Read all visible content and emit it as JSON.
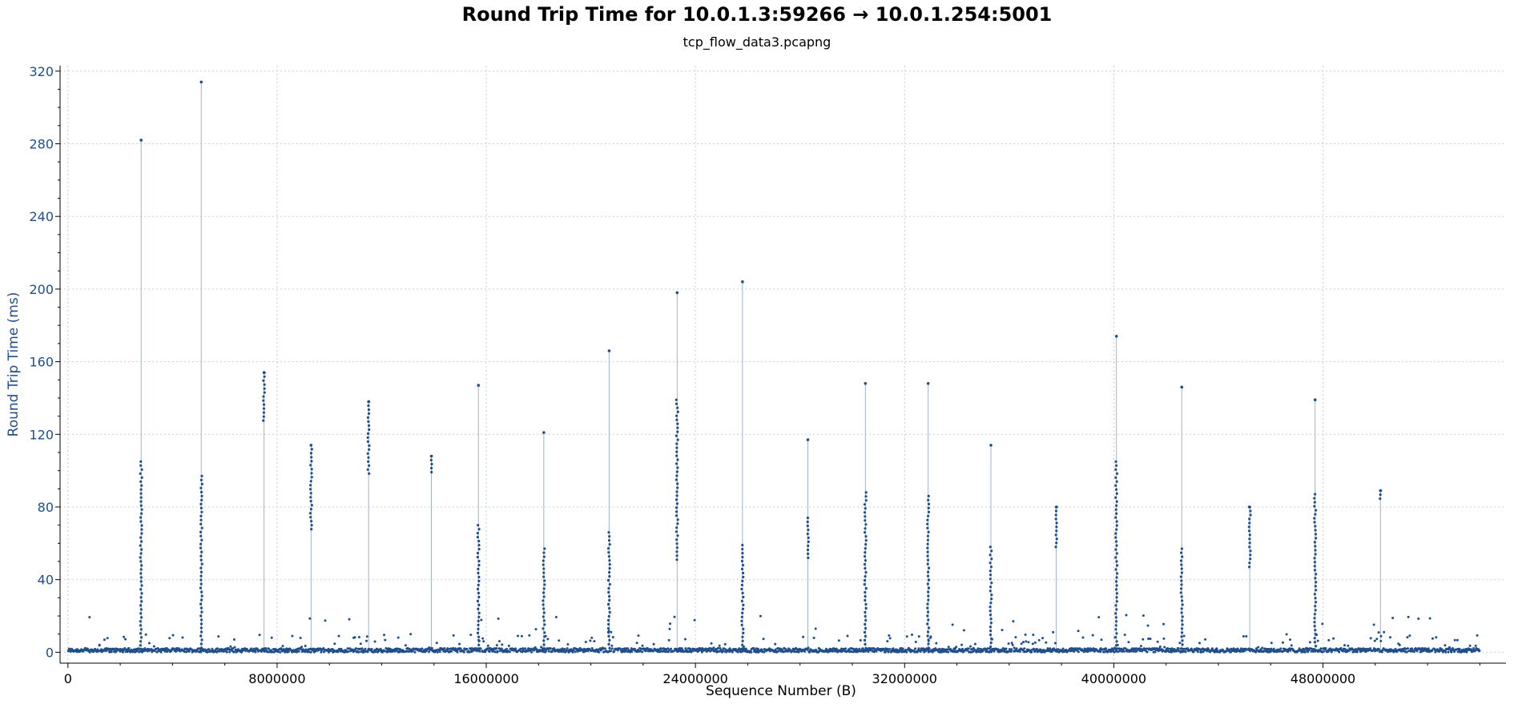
{
  "chart_data": {
    "type": "scatter",
    "title": "Round Trip Time for 10.0.1.3:59266 → 10.0.1.254:5001",
    "subtitle": "tcp_flow_data3.pcapng",
    "xlabel": "Sequence Number (B)",
    "ylabel": "Round Trip Time (ms)",
    "xlim": [
      -300000,
      55000000
    ],
    "ylim": [
      -6,
      323
    ],
    "x_ticks": [
      0,
      8000000,
      16000000,
      24000000,
      32000000,
      40000000,
      48000000
    ],
    "y_ticks": [
      0,
      40,
      80,
      120,
      160,
      200,
      240,
      280,
      320
    ],
    "x_tick_labels": [
      "0",
      "8000000",
      "16000000",
      "24000000",
      "32000000",
      "40000000",
      "48000000"
    ],
    "y_tick_labels": [
      "0",
      "40",
      "80",
      "120",
      "160",
      "200",
      "240",
      "280",
      "320"
    ],
    "grid": true,
    "colors": {
      "points": "#1f4e8c",
      "line": "#9fb3cc",
      "y_axis_text": "#1f4e8c"
    },
    "spikes": [
      {
        "x": 2800000,
        "peak": 282,
        "cluster": [
          105,
          0
        ]
      },
      {
        "x": 5100000,
        "peak": 314,
        "cluster": [
          97,
          0
        ]
      },
      {
        "x": 7500000,
        "peak": 154,
        "cluster": [
          154,
          127
        ]
      },
      {
        "x": 9300000,
        "peak": 114,
        "cluster": [
          114,
          66
        ]
      },
      {
        "x": 11500000,
        "peak": 138,
        "cluster": [
          138,
          97
        ]
      },
      {
        "x": 13900000,
        "peak": 108,
        "cluster": [
          108,
          97
        ]
      },
      {
        "x": 15700000,
        "peak": 147,
        "cluster": [
          70,
          0
        ]
      },
      {
        "x": 18200000,
        "peak": 121,
        "cluster": [
          57,
          0
        ]
      },
      {
        "x": 20700000,
        "peak": 166,
        "cluster": [
          66,
          0
        ]
      },
      {
        "x": 23300000,
        "peak": 198,
        "cluster": [
          139,
          50
        ]
      },
      {
        "x": 25800000,
        "peak": 204,
        "cluster": [
          59,
          0
        ]
      },
      {
        "x": 28300000,
        "peak": 117,
        "cluster": [
          74,
          51
        ]
      },
      {
        "x": 30500000,
        "peak": 148,
        "cluster": [
          88,
          0
        ]
      },
      {
        "x": 32900000,
        "peak": 148,
        "cluster": [
          86,
          0
        ]
      },
      {
        "x": 35300000,
        "peak": 114,
        "cluster": [
          58,
          0
        ]
      },
      {
        "x": 37800000,
        "peak": 80,
        "cluster": [
          80,
          57
        ]
      },
      {
        "x": 40100000,
        "peak": 174,
        "cluster": [
          105,
          0
        ]
      },
      {
        "x": 42600000,
        "peak": 146,
        "cluster": [
          57,
          0
        ]
      },
      {
        "x": 45200000,
        "peak": 80,
        "cluster": [
          80,
          46
        ]
      },
      {
        "x": 47700000,
        "peak": 139,
        "cluster": [
          87,
          0
        ]
      },
      {
        "x": 50200000,
        "peak": 89,
        "cluster": [
          89,
          83
        ]
      }
    ],
    "baseline_rtt_range": [
      0,
      21
    ],
    "x_max_data": 54000000
  }
}
